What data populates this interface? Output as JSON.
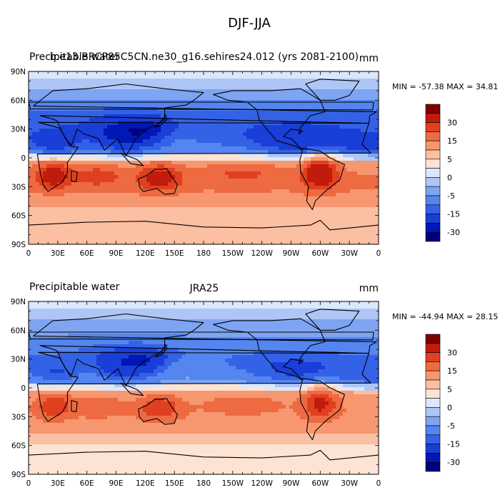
{
  "figure": {
    "title": "DJF-JJA"
  },
  "colorbar": {
    "levels": [
      -40,
      -30,
      -20,
      -15,
      -10,
      -5,
      -2,
      0,
      2,
      5,
      10,
      15,
      20,
      30,
      40
    ],
    "tick_labels": [
      "30",
      "15",
      "5",
      "0",
      "-5",
      "-15",
      "-30"
    ],
    "colors": [
      "#00007f",
      "#0018b4",
      "#1a3ed8",
      "#3462e6",
      "#5585ef",
      "#7ea4f2",
      "#adc6f6",
      "#dbe7fb",
      "#fde3d4",
      "#fbbfa1",
      "#f6976f",
      "#ee6a41",
      "#e04020",
      "#c01b0c",
      "#7f0000"
    ]
  },
  "chart_data": [
    {
      "type": "heatmap",
      "title_left": "Precipitable water",
      "title_center": "b.e13.BRCP85C5CN.ne30_g16.sehires24.012 (yrs 2081-2100)",
      "units": "mm",
      "min_max": "MIN = -57.38 MAX =  34.81",
      "min": -57.38,
      "max": 34.81,
      "xlim": [
        0,
        360
      ],
      "ylim": [
        -90,
        90
      ],
      "x_tick_labels": [
        "0",
        "30E",
        "60E",
        "90E",
        "120E",
        "150E",
        "180",
        "150W",
        "120W",
        "90W",
        "60W",
        "30W",
        "0"
      ],
      "y_tick_labels": [
        "90N",
        "60N",
        "30N",
        "0",
        "30S",
        "60S",
        "90S"
      ]
    },
    {
      "type": "heatmap",
      "title_left": "Precipitable water",
      "title_center": "JRA25",
      "units": "mm",
      "min_max": "MIN = -44.94 MAX =  28.15",
      "min": -44.94,
      "max": 28.15,
      "xlim": [
        0,
        360
      ],
      "ylim": [
        -90,
        90
      ],
      "x_tick_labels": [
        "0",
        "30E",
        "60E",
        "90E",
        "120E",
        "150E",
        "180",
        "150W",
        "120W",
        "90W",
        "60W",
        "30W",
        "0"
      ],
      "y_tick_labels": [
        "90N",
        "60N",
        "30N",
        "0",
        "30S",
        "60S",
        "90S"
      ]
    }
  ]
}
